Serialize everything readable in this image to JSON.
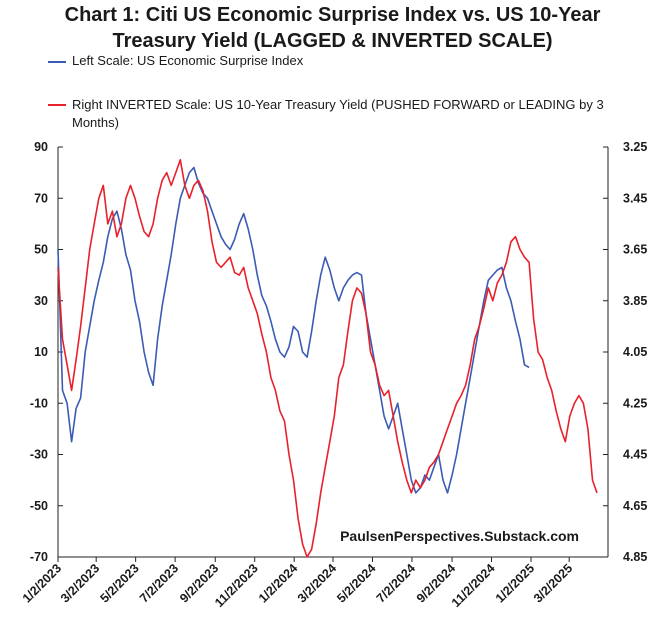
{
  "chart_data": {
    "type": "line",
    "title_line1": "Chart 1: Citi US Economic Surprise Index vs. US 10-Year",
    "title_line2": "Treasury Yield (LAGGED & INVERTED SCALE)",
    "watermark": "PaulsenPerspectives.Substack.com",
    "x_ticks": [
      "1/2/2023",
      "3/2/2023",
      "5/2/2023",
      "7/2/2023",
      "9/2/2023",
      "11/2/2023",
      "1/2/2024",
      "3/2/2024",
      "5/2/2024",
      "7/2/2024",
      "9/2/2024",
      "11/2/2024",
      "1/2/2025",
      "3/2/2025"
    ],
    "left_axis": {
      "ticks": [
        "90",
        "70",
        "50",
        "30",
        "10",
        "-10",
        "-30",
        "-50",
        "-70"
      ],
      "ylim": [
        -70,
        90
      ]
    },
    "right_axis": {
      "ticks": [
        "3.25",
        "3.45",
        "3.65",
        "3.85",
        "4.05",
        "4.25",
        "4.45",
        "4.65",
        "4.85"
      ],
      "ylim": [
        3.25,
        4.85
      ],
      "inverted": true
    },
    "legend_position": "top-left",
    "grid": false,
    "series": [
      {
        "name": "Left Scale: US Economic Surprise Index",
        "axis": "left",
        "color": "#3b5bb5",
        "points": [
          [
            "2023-01-02",
            50
          ],
          [
            "2023-01-09",
            -5
          ],
          [
            "2023-01-16",
            -10
          ],
          [
            "2023-01-23",
            -25
          ],
          [
            "2023-01-30",
            -12
          ],
          [
            "2023-02-06",
            -8
          ],
          [
            "2023-02-13",
            10
          ],
          [
            "2023-02-20",
            20
          ],
          [
            "2023-02-27",
            30
          ],
          [
            "2023-03-06",
            38
          ],
          [
            "2023-03-13",
            45
          ],
          [
            "2023-03-20",
            55
          ],
          [
            "2023-03-27",
            62
          ],
          [
            "2023-04-03",
            65
          ],
          [
            "2023-04-10",
            58
          ],
          [
            "2023-04-17",
            48
          ],
          [
            "2023-04-24",
            42
          ],
          [
            "2023-05-01",
            30
          ],
          [
            "2023-05-08",
            22
          ],
          [
            "2023-05-15",
            10
          ],
          [
            "2023-05-22",
            2
          ],
          [
            "2023-05-29",
            -3
          ],
          [
            "2023-06-05",
            15
          ],
          [
            "2023-06-12",
            28
          ],
          [
            "2023-06-19",
            38
          ],
          [
            "2023-06-26",
            48
          ],
          [
            "2023-07-03",
            60
          ],
          [
            "2023-07-10",
            70
          ],
          [
            "2023-07-17",
            75
          ],
          [
            "2023-07-24",
            80
          ],
          [
            "2023-07-31",
            82
          ],
          [
            "2023-08-07",
            76
          ],
          [
            "2023-08-14",
            72
          ],
          [
            "2023-08-21",
            70
          ],
          [
            "2023-08-28",
            65
          ],
          [
            "2023-09-04",
            60
          ],
          [
            "2023-09-11",
            55
          ],
          [
            "2023-09-18",
            52
          ],
          [
            "2023-09-25",
            50
          ],
          [
            "2023-10-02",
            54
          ],
          [
            "2023-10-09",
            60
          ],
          [
            "2023-10-16",
            64
          ],
          [
            "2023-10-23",
            58
          ],
          [
            "2023-10-30",
            50
          ],
          [
            "2023-11-06",
            40
          ],
          [
            "2023-11-13",
            32
          ],
          [
            "2023-11-20",
            28
          ],
          [
            "2023-11-27",
            22
          ],
          [
            "2023-12-04",
            15
          ],
          [
            "2023-12-11",
            10
          ],
          [
            "2023-12-18",
            8
          ],
          [
            "2023-12-25",
            12
          ],
          [
            "2024-01-01",
            20
          ],
          [
            "2024-01-08",
            18
          ],
          [
            "2024-01-15",
            10
          ],
          [
            "2024-01-22",
            8
          ],
          [
            "2024-01-29",
            18
          ],
          [
            "2024-02-05",
            30
          ],
          [
            "2024-02-12",
            40
          ],
          [
            "2024-02-19",
            47
          ],
          [
            "2024-02-26",
            42
          ],
          [
            "2024-03-04",
            35
          ],
          [
            "2024-03-11",
            30
          ],
          [
            "2024-03-18",
            35
          ],
          [
            "2024-03-25",
            38
          ],
          [
            "2024-04-01",
            40
          ],
          [
            "2024-04-08",
            41
          ],
          [
            "2024-04-15",
            40
          ],
          [
            "2024-04-22",
            25
          ],
          [
            "2024-04-29",
            15
          ],
          [
            "2024-05-06",
            5
          ],
          [
            "2024-05-13",
            -5
          ],
          [
            "2024-05-20",
            -15
          ],
          [
            "2024-05-27",
            -20
          ],
          [
            "2024-06-03",
            -15
          ],
          [
            "2024-06-10",
            -10
          ],
          [
            "2024-06-17",
            -20
          ],
          [
            "2024-06-24",
            -30
          ],
          [
            "2024-07-01",
            -40
          ],
          [
            "2024-07-08",
            -45
          ],
          [
            "2024-07-15",
            -43
          ],
          [
            "2024-07-22",
            -38
          ],
          [
            "2024-07-29",
            -40
          ],
          [
            "2024-08-05",
            -35
          ],
          [
            "2024-08-12",
            -30
          ],
          [
            "2024-08-19",
            -40
          ],
          [
            "2024-08-26",
            -45
          ],
          [
            "2024-09-02",
            -38
          ],
          [
            "2024-09-09",
            -30
          ],
          [
            "2024-09-16",
            -20
          ],
          [
            "2024-09-23",
            -10
          ],
          [
            "2024-09-30",
            0
          ],
          [
            "2024-10-07",
            10
          ],
          [
            "2024-10-14",
            20
          ],
          [
            "2024-10-21",
            30
          ],
          [
            "2024-10-28",
            38
          ],
          [
            "2024-11-04",
            40
          ],
          [
            "2024-11-11",
            42
          ],
          [
            "2024-11-18",
            43
          ],
          [
            "2024-11-25",
            35
          ],
          [
            "2024-12-02",
            30
          ],
          [
            "2024-12-09",
            22
          ],
          [
            "2024-12-16",
            15
          ],
          [
            "2024-12-23",
            5
          ],
          [
            "2024-12-30",
            4
          ]
        ]
      },
      {
        "name": "Right INVERTED Scale: US 10-Year Treasury Yield (PUSHED FORWARD or LEADING by 3 Months)",
        "axis": "right",
        "color": "#e8212b",
        "points": [
          [
            "2023-01-02",
            3.72
          ],
          [
            "2023-01-09",
            4.0
          ],
          [
            "2023-01-16",
            4.1
          ],
          [
            "2023-01-23",
            4.2
          ],
          [
            "2023-01-30",
            4.08
          ],
          [
            "2023-02-06",
            3.95
          ],
          [
            "2023-02-13",
            3.8
          ],
          [
            "2023-02-20",
            3.65
          ],
          [
            "2023-02-27",
            3.55
          ],
          [
            "2023-03-06",
            3.45
          ],
          [
            "2023-03-13",
            3.4
          ],
          [
            "2023-03-20",
            3.55
          ],
          [
            "2023-03-27",
            3.5
          ],
          [
            "2023-04-03",
            3.6
          ],
          [
            "2023-04-10",
            3.55
          ],
          [
            "2023-04-17",
            3.45
          ],
          [
            "2023-04-24",
            3.4
          ],
          [
            "2023-05-01",
            3.45
          ],
          [
            "2023-05-08",
            3.52
          ],
          [
            "2023-05-15",
            3.58
          ],
          [
            "2023-05-22",
            3.6
          ],
          [
            "2023-05-29",
            3.55
          ],
          [
            "2023-06-05",
            3.45
          ],
          [
            "2023-06-12",
            3.38
          ],
          [
            "2023-06-19",
            3.35
          ],
          [
            "2023-06-26",
            3.4
          ],
          [
            "2023-07-03",
            3.35
          ],
          [
            "2023-07-10",
            3.3
          ],
          [
            "2023-07-17",
            3.4
          ],
          [
            "2023-07-24",
            3.45
          ],
          [
            "2023-07-31",
            3.4
          ],
          [
            "2023-08-07",
            3.38
          ],
          [
            "2023-08-14",
            3.42
          ],
          [
            "2023-08-21",
            3.5
          ],
          [
            "2023-08-28",
            3.62
          ],
          [
            "2023-09-04",
            3.7
          ],
          [
            "2023-09-11",
            3.72
          ],
          [
            "2023-09-18",
            3.7
          ],
          [
            "2023-09-25",
            3.68
          ],
          [
            "2023-10-02",
            3.74
          ],
          [
            "2023-10-09",
            3.75
          ],
          [
            "2023-10-16",
            3.72
          ],
          [
            "2023-10-23",
            3.8
          ],
          [
            "2023-10-30",
            3.85
          ],
          [
            "2023-11-06",
            3.9
          ],
          [
            "2023-11-13",
            3.98
          ],
          [
            "2023-11-20",
            4.05
          ],
          [
            "2023-11-27",
            4.15
          ],
          [
            "2023-12-04",
            4.2
          ],
          [
            "2023-12-11",
            4.28
          ],
          [
            "2023-12-18",
            4.32
          ],
          [
            "2023-12-25",
            4.45
          ],
          [
            "2024-01-01",
            4.55
          ],
          [
            "2024-01-08",
            4.7
          ],
          [
            "2024-01-15",
            4.8
          ],
          [
            "2024-01-22",
            4.85
          ],
          [
            "2024-01-29",
            4.82
          ],
          [
            "2024-02-05",
            4.72
          ],
          [
            "2024-02-12",
            4.6
          ],
          [
            "2024-02-19",
            4.5
          ],
          [
            "2024-02-26",
            4.4
          ],
          [
            "2024-03-04",
            4.3
          ],
          [
            "2024-03-11",
            4.15
          ],
          [
            "2024-03-18",
            4.1
          ],
          [
            "2024-03-25",
            3.97
          ],
          [
            "2024-04-01",
            3.85
          ],
          [
            "2024-04-08",
            3.8
          ],
          [
            "2024-04-15",
            3.82
          ],
          [
            "2024-04-22",
            3.9
          ],
          [
            "2024-04-29",
            4.05
          ],
          [
            "2024-05-06",
            4.1
          ],
          [
            "2024-05-13",
            4.18
          ],
          [
            "2024-05-20",
            4.22
          ],
          [
            "2024-05-27",
            4.2
          ],
          [
            "2024-06-03",
            4.3
          ],
          [
            "2024-06-10",
            4.4
          ],
          [
            "2024-06-17",
            4.48
          ],
          [
            "2024-06-24",
            4.55
          ],
          [
            "2024-07-01",
            4.6
          ],
          [
            "2024-07-08",
            4.55
          ],
          [
            "2024-07-15",
            4.58
          ],
          [
            "2024-07-22",
            4.55
          ],
          [
            "2024-07-29",
            4.5
          ],
          [
            "2024-08-05",
            4.48
          ],
          [
            "2024-08-12",
            4.45
          ],
          [
            "2024-08-19",
            4.4
          ],
          [
            "2024-08-26",
            4.35
          ],
          [
            "2024-09-02",
            4.3
          ],
          [
            "2024-09-09",
            4.25
          ],
          [
            "2024-09-16",
            4.22
          ],
          [
            "2024-09-23",
            4.18
          ],
          [
            "2024-09-30",
            4.1
          ],
          [
            "2024-10-07",
            4.0
          ],
          [
            "2024-10-14",
            3.95
          ],
          [
            "2024-10-21",
            3.88
          ],
          [
            "2024-10-28",
            3.8
          ],
          [
            "2024-11-04",
            3.85
          ],
          [
            "2024-11-11",
            3.78
          ],
          [
            "2024-11-18",
            3.75
          ],
          [
            "2024-11-25",
            3.7
          ],
          [
            "2024-12-02",
            3.62
          ],
          [
            "2024-12-09",
            3.6
          ],
          [
            "2024-12-16",
            3.65
          ],
          [
            "2024-12-23",
            3.68
          ],
          [
            "2024-12-30",
            3.7
          ],
          [
            "2025-01-06",
            3.92
          ],
          [
            "2025-01-13",
            4.05
          ],
          [
            "2025-01-20",
            4.08
          ],
          [
            "2025-01-27",
            4.15
          ],
          [
            "2025-02-03",
            4.2
          ],
          [
            "2025-02-10",
            4.28
          ],
          [
            "2025-02-17",
            4.35
          ],
          [
            "2025-02-24",
            4.4
          ],
          [
            "2025-03-03",
            4.3
          ],
          [
            "2025-03-10",
            4.25
          ],
          [
            "2025-03-17",
            4.22
          ],
          [
            "2025-03-24",
            4.25
          ],
          [
            "2025-03-31",
            4.35
          ],
          [
            "2025-04-07",
            4.55
          ],
          [
            "2025-04-14",
            4.6
          ]
        ]
      }
    ]
  }
}
